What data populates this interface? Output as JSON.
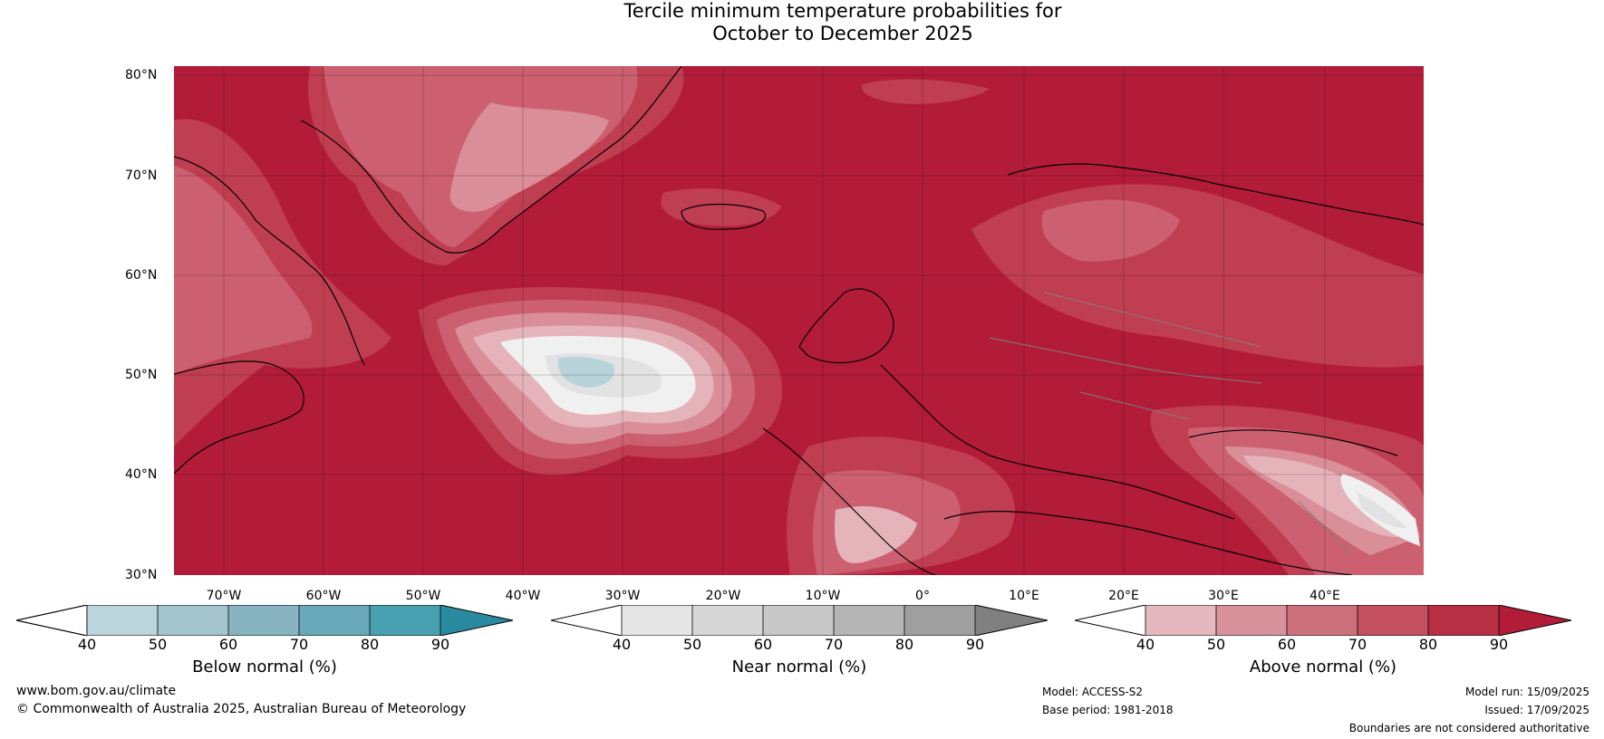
{
  "title": {
    "line1": "Tercile minimum temperature probabilities for",
    "line2": "October to December 2025"
  },
  "map": {
    "latitude_labels": [
      "80°N",
      "70°N",
      "60°N",
      "50°N",
      "40°N",
      "30°N"
    ],
    "longitude_labels": [
      "70°W",
      "60°W",
      "50°W",
      "40°W",
      "30°W",
      "20°W",
      "10°W",
      "0°",
      "10°E",
      "20°E",
      "30°E",
      "40°E"
    ],
    "colors": {
      "above_90": "#b21c39",
      "above_80": "#c03e51",
      "above_70": "#cc6070",
      "above_60": "#d98e98",
      "above_50": "#e5b4ba",
      "near_40": "#f0f0f0",
      "near_50": "#e2e2e2",
      "below_50": "#b8d2da",
      "below_60": "#a5c5cf",
      "coastline": "#000000",
      "borders": "#808080"
    }
  },
  "colorbars": [
    {
      "label": "Below normal (%)",
      "ticks": [
        "40",
        "50",
        "60",
        "70",
        "80",
        "90"
      ],
      "colors": [
        "#ffffff",
        "#bcd4dc",
        "#a5c5ce",
        "#88b4c1",
        "#6aa9ba",
        "#48a0b1",
        "#2a8a9f"
      ]
    },
    {
      "label": "Near normal (%)",
      "ticks": [
        "40",
        "50",
        "60",
        "70",
        "80",
        "90"
      ],
      "colors": [
        "#ffffff",
        "#e6e6e6",
        "#d7d7d7",
        "#c8c8c8",
        "#b5b5b5",
        "#9f9f9f",
        "#808080"
      ]
    },
    {
      "label": "Above normal (%)",
      "ticks": [
        "40",
        "50",
        "60",
        "70",
        "80",
        "90"
      ],
      "colors": [
        "#ffffff",
        "#e4b8be",
        "#d8929b",
        "#cc707b",
        "#c34f60",
        "#b72f45",
        "#b21c39"
      ]
    }
  ],
  "footer": {
    "website": "www.bom.gov.au/climate",
    "copyright": "© Commonwealth of Australia 2025, Australian Bureau of Meteorology",
    "model": "Model: ACCESS-S2",
    "base_period": "Base period: 1981-2018",
    "model_run": "Model run: 15/09/2025",
    "issued": "Issued: 17/09/2025",
    "disclaimer": "Boundaries are not considered authoritative"
  }
}
